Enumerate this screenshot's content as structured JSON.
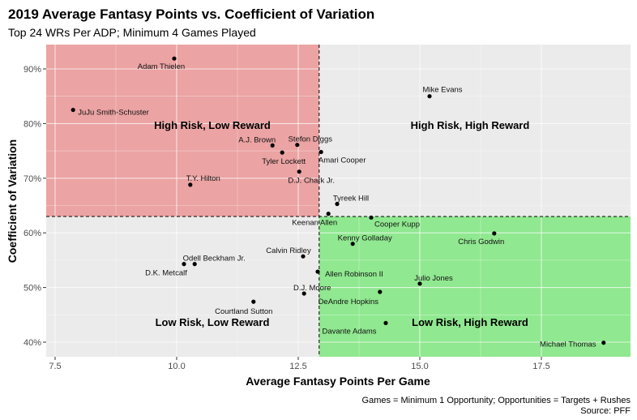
{
  "chart_data": {
    "type": "scatter",
    "title": "2019 Average Fantasy Points vs. Coefficient of Variation",
    "subtitle": "Top 24 WRs Per ADP; Minimum 4 Games Played",
    "xlabel": "Average Fantasy Points Per Game",
    "ylabel": "Coefficient of Variation",
    "caption": [
      "Games = Minimum 1 Opportunity; Opportunities = Targets + Rushes",
      "Source: PFF"
    ],
    "xlim": [
      7.3,
      19.3
    ],
    "ylim": [
      38.2,
      94.8
    ],
    "xticks": [
      7.5,
      10.0,
      12.5,
      15.0,
      17.5
    ],
    "xtick_labels": [
      "7.5",
      "10.0",
      "12.5",
      "15.0",
      "17.5"
    ],
    "yticks": [
      40,
      50,
      60,
      70,
      80,
      90
    ],
    "ytick_labels": [
      "40%",
      "50%",
      "60%",
      "70%",
      "80%",
      "90%"
    ],
    "grid": true,
    "x_divider": 12.93,
    "y_divider": 63.0,
    "quadrants": {
      "top_left": {
        "label": "High Risk, Low Reward",
        "color": "#eba3a3"
      },
      "top_right": {
        "label": "High Risk, High Reward",
        "color": "#ebebeb"
      },
      "bottom_left": {
        "label": "Low Risk, Low Reward",
        "color": "#ebebeb"
      },
      "bottom_right": {
        "label": "Low Risk, High Reward",
        "color": "#90e890"
      }
    },
    "points": [
      {
        "name": "Adam Thielen",
        "x": 9.95,
        "y": 91.9
      },
      {
        "name": "JuJu Smith-Schuster",
        "x": 7.87,
        "y": 82.5
      },
      {
        "name": "Mike Evans",
        "x": 15.2,
        "y": 85.0
      },
      {
        "name": "A.J. Brown",
        "x": 11.97,
        "y": 76.0
      },
      {
        "name": "Stefon Diggs",
        "x": 12.48,
        "y": 76.1
      },
      {
        "name": "Tyler Lockett",
        "x": 12.17,
        "y": 74.7
      },
      {
        "name": "Amari Cooper",
        "x": 12.97,
        "y": 74.8
      },
      {
        "name": "D.J. Chark Jr.",
        "x": 12.52,
        "y": 71.2
      },
      {
        "name": "T.Y. Hilton",
        "x": 10.28,
        "y": 68.8
      },
      {
        "name": "Tyreek Hill",
        "x": 13.3,
        "y": 65.3
      },
      {
        "name": "Keenan Allen",
        "x": 13.12,
        "y": 63.5
      },
      {
        "name": "Cooper Kupp",
        "x": 14.0,
        "y": 62.8
      },
      {
        "name": "Chris Godwin",
        "x": 16.53,
        "y": 59.9
      },
      {
        "name": "Kenny Golladay",
        "x": 13.62,
        "y": 58.0
      },
      {
        "name": "Calvin Ridley",
        "x": 12.6,
        "y": 55.7
      },
      {
        "name": "Odell Beckham Jr.",
        "x": 10.37,
        "y": 54.3
      },
      {
        "name": "D.K. Metcalf",
        "x": 10.15,
        "y": 54.3
      },
      {
        "name": "Allen Robinson II",
        "x": 12.9,
        "y": 52.9
      },
      {
        "name": "Julio Jones",
        "x": 15.0,
        "y": 50.7
      },
      {
        "name": "D.J. Moore",
        "x": 12.62,
        "y": 48.9
      },
      {
        "name": "DeAndre Hopkins",
        "x": 14.18,
        "y": 49.2
      },
      {
        "name": "Courtland Sutton",
        "x": 11.58,
        "y": 47.4
      },
      {
        "name": "Davante Adams",
        "x": 14.3,
        "y": 43.5
      },
      {
        "name": "Michael Thomas",
        "x": 18.78,
        "y": 39.9
      }
    ]
  }
}
